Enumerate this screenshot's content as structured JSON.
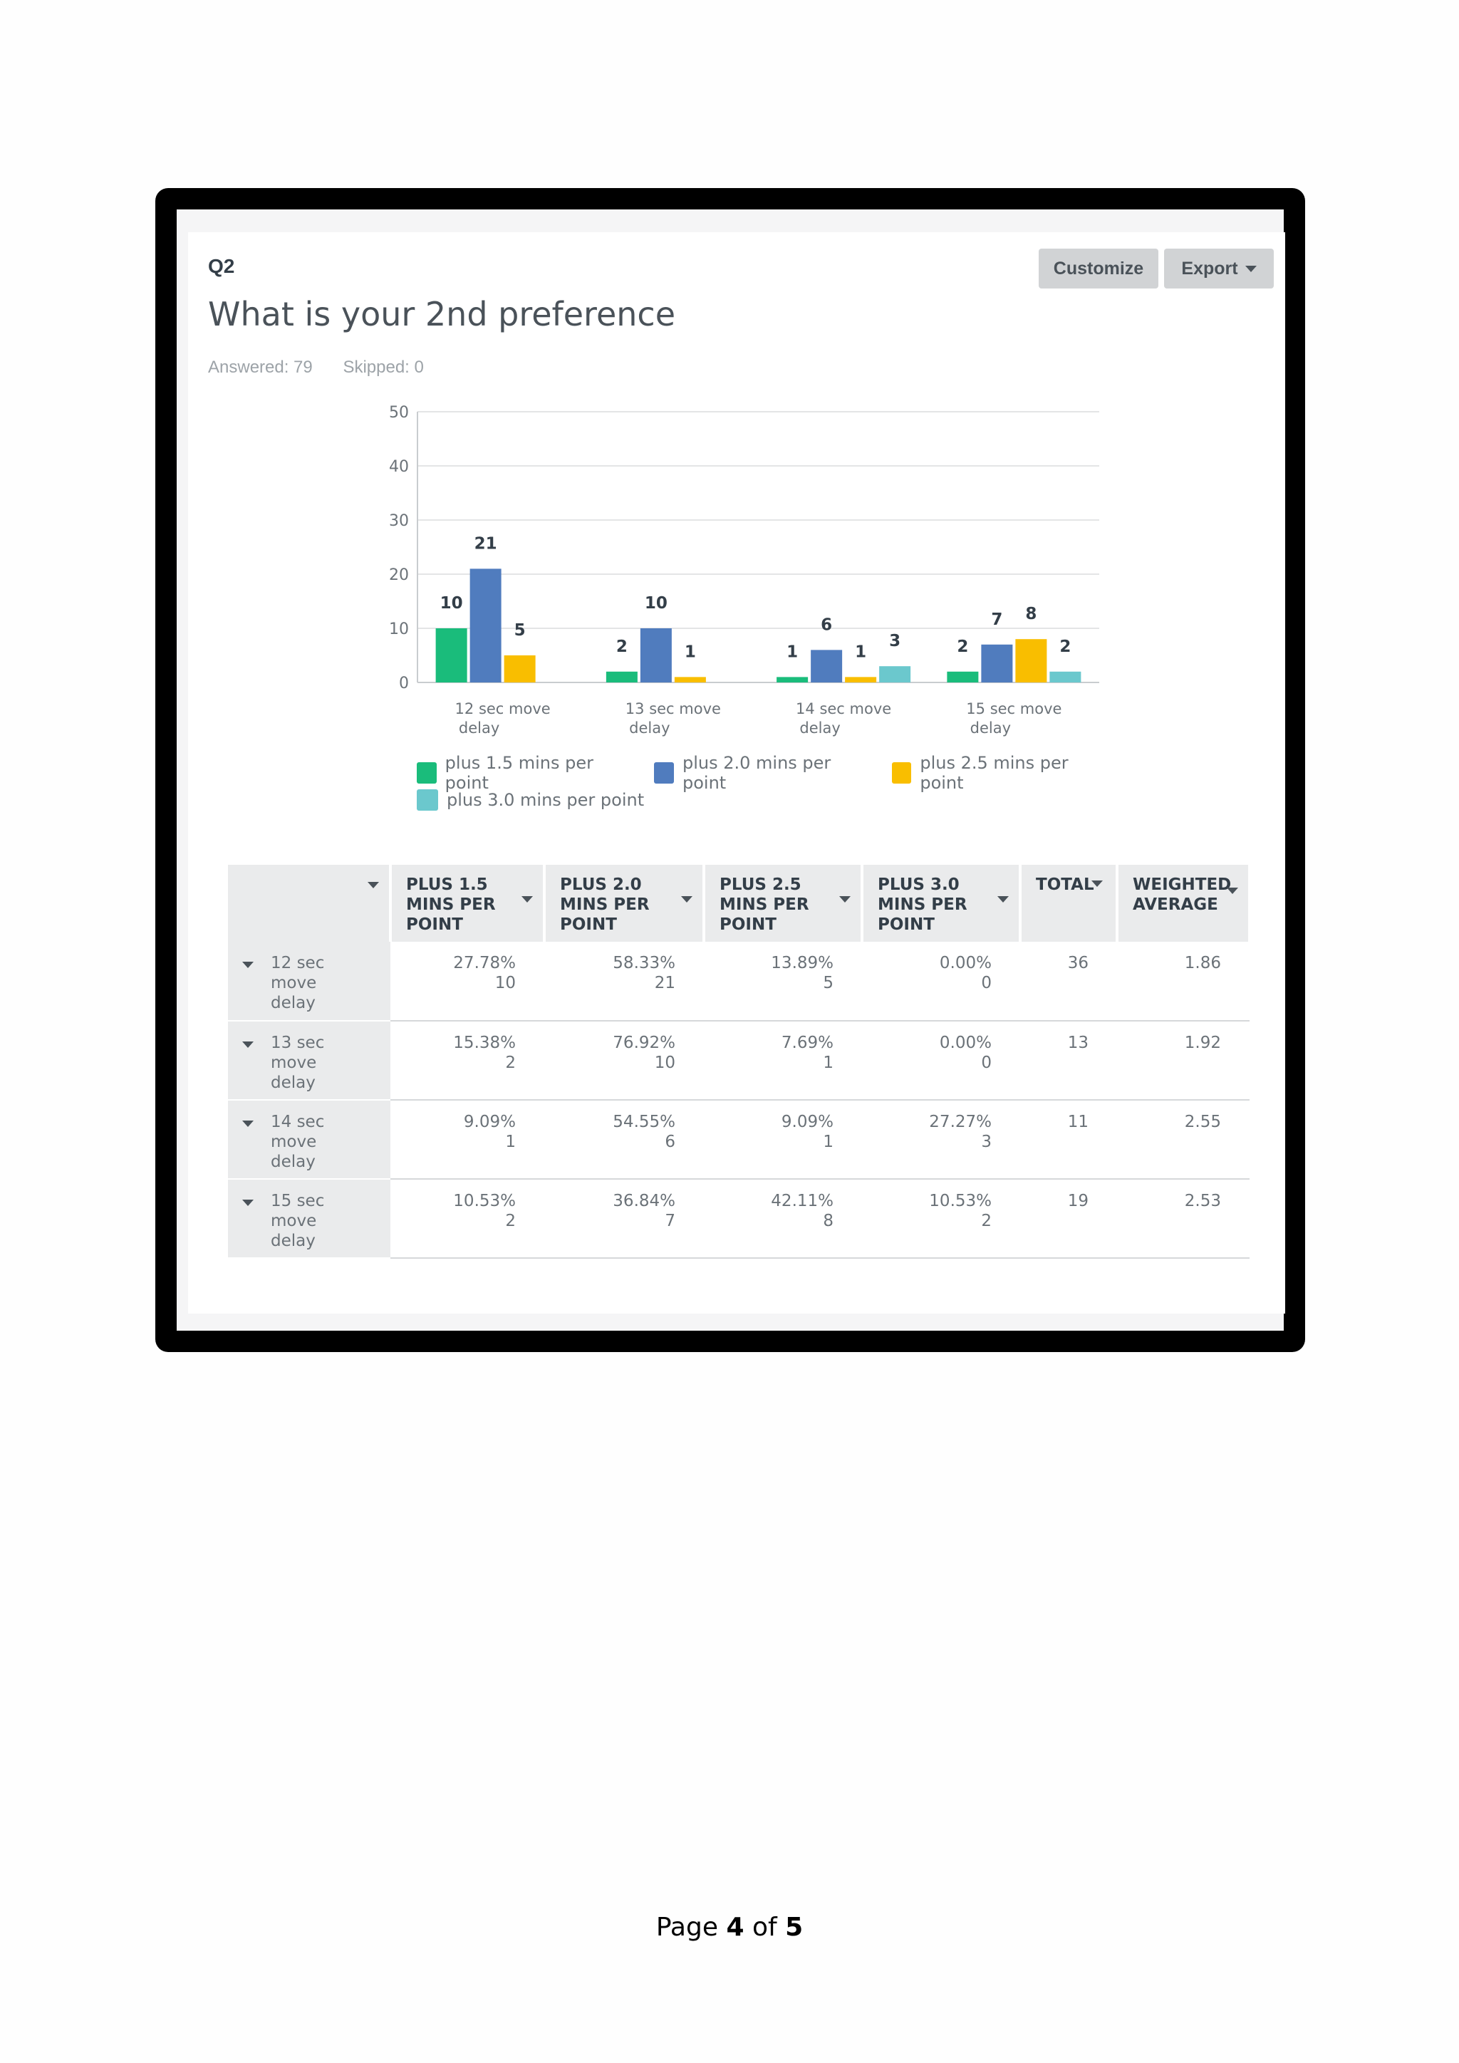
{
  "question": {
    "number": "Q2",
    "title": "What is your 2nd preference",
    "answered": "Answered: 79",
    "skipped": "Skipped: 0"
  },
  "toolbar": {
    "customize_label": "Customize",
    "export_label": "Export"
  },
  "colors": {
    "green": "#1abc7b",
    "blue": "#507cbe",
    "yellow": "#f9be00",
    "teal": "#6bc8cd"
  },
  "legend": [
    "plus 1.5 mins per point",
    "plus 2.0 mins per point",
    "plus 2.5 mins per point",
    "plus 3.0 mins per point"
  ],
  "chart_data": {
    "type": "bar",
    "categories": [
      "12 sec move delay",
      "13 sec move delay",
      "14 sec move delay",
      "15 sec move delay"
    ],
    "category_lines": [
      [
        "12 sec move",
        "delay"
      ],
      [
        "13 sec move",
        "delay"
      ],
      [
        "14 sec move",
        "delay"
      ],
      [
        "15 sec move",
        "delay"
      ]
    ],
    "series": [
      {
        "name": "plus 1.5 mins per point",
        "values": [
          10,
          2,
          1,
          2
        ]
      },
      {
        "name": "plus 2.0 mins per point",
        "values": [
          21,
          10,
          6,
          7
        ]
      },
      {
        "name": "plus 2.5 mins per point",
        "values": [
          5,
          1,
          1,
          8
        ]
      },
      {
        "name": "plus 3.0 mins per point",
        "values": [
          0,
          0,
          3,
          2
        ]
      }
    ],
    "yticks": [
      0,
      10,
      20,
      30,
      40,
      50
    ],
    "ylim": [
      0,
      50
    ],
    "grid": true,
    "legend_position": "bottom"
  },
  "table": {
    "headers": [
      "PLUS 1.5 MINS PER POINT",
      "PLUS 2.0 MINS PER POINT",
      "PLUS 2.5 MINS PER POINT",
      "PLUS 3.0 MINS PER POINT",
      "TOTAL",
      "WEIGHTED AVERAGE"
    ],
    "header_lines": [
      [
        "PLUS 1.5",
        "MINS PER",
        "POINT"
      ],
      [
        "PLUS 2.0",
        "MINS PER",
        "POINT"
      ],
      [
        "PLUS 2.5",
        "MINS PER",
        "POINT"
      ],
      [
        "PLUS 3.0",
        "MINS PER",
        "POINT"
      ],
      [
        "TOTAL"
      ],
      [
        "WEIGHTED",
        "AVERAGE"
      ]
    ],
    "rows": [
      {
        "label": [
          "12 sec",
          "move",
          "delay"
        ],
        "cells": [
          [
            "27.78%",
            "10"
          ],
          [
            "58.33%",
            "21"
          ],
          [
            "13.89%",
            "5"
          ],
          [
            "0.00%",
            "0"
          ]
        ],
        "total": "36",
        "avg": "1.86"
      },
      {
        "label": [
          "13 sec",
          "move",
          "delay"
        ],
        "cells": [
          [
            "15.38%",
            "2"
          ],
          [
            "76.92%",
            "10"
          ],
          [
            "7.69%",
            "1"
          ],
          [
            "0.00%",
            "0"
          ]
        ],
        "total": "13",
        "avg": "1.92"
      },
      {
        "label": [
          "14 sec",
          "move",
          "delay"
        ],
        "cells": [
          [
            "9.09%",
            "1"
          ],
          [
            "54.55%",
            "6"
          ],
          [
            "9.09%",
            "1"
          ],
          [
            "27.27%",
            "3"
          ]
        ],
        "total": "11",
        "avg": "2.55"
      },
      {
        "label": [
          "15 sec",
          "move",
          "delay"
        ],
        "cells": [
          [
            "10.53%",
            "2"
          ],
          [
            "36.84%",
            "7"
          ],
          [
            "42.11%",
            "8"
          ],
          [
            "10.53%",
            "2"
          ]
        ],
        "total": "19",
        "avg": "2.53"
      }
    ]
  },
  "footer": {
    "prefix": "Page ",
    "current": "4",
    "middle": " of ",
    "total": "5"
  }
}
